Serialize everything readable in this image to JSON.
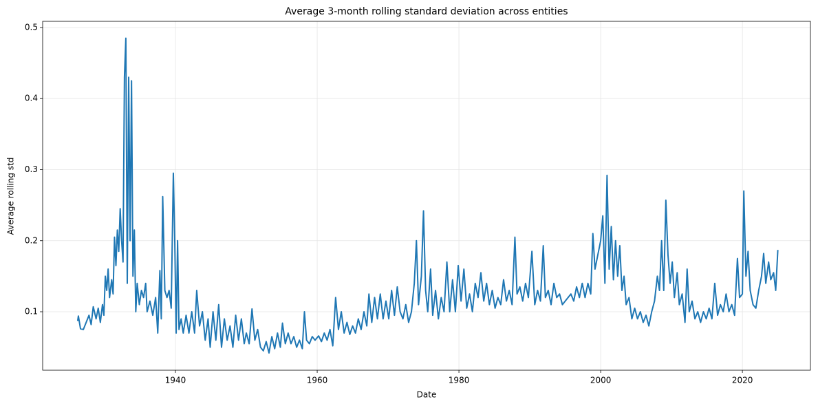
{
  "chart_data": {
    "type": "line",
    "title": "Average 3-month rolling standard deviation across entities",
    "xlabel": "Date",
    "ylabel": "Average rolling std",
    "color": "#1f77b4",
    "grid": true,
    "xlim": [
      1921.26,
      2029.6
    ],
    "ylim": [
      0.0177,
      0.5087
    ],
    "xticks": [
      1940,
      1960,
      1980,
      2000,
      2020
    ],
    "yticks": [
      0.1,
      0.2,
      0.3,
      0.4,
      0.5
    ],
    "x": [
      1926.2,
      1926.3,
      1926.6,
      1927,
      1927.4,
      1927.8,
      1928.1,
      1928.4,
      1928.8,
      1929.1,
      1929.4,
      1929.7,
      1929.9,
      1930.1,
      1930.3,
      1930.5,
      1930.7,
      1931,
      1931.2,
      1931.4,
      1931.6,
      1931.8,
      1932,
      1932.2,
      1932.4,
      1932.6,
      1932.8,
      1933,
      1933.2,
      1933.4,
      1933.6,
      1933.8,
      1934,
      1934.2,
      1934.4,
      1934.6,
      1934.9,
      1935.2,
      1935.5,
      1935.8,
      1936,
      1936.4,
      1936.8,
      1937.2,
      1937.5,
      1937.8,
      1938,
      1938.2,
      1938.5,
      1938.8,
      1939.1,
      1939.4,
      1939.7,
      1939.9,
      1940.1,
      1940.3,
      1940.5,
      1940.8,
      1941.1,
      1941.5,
      1941.9,
      1942.3,
      1942.7,
      1943,
      1943.4,
      1943.8,
      1944.2,
      1944.6,
      1944.9,
      1945.3,
      1945.7,
      1946.1,
      1946.5,
      1946.9,
      1947.3,
      1947.7,
      1948.1,
      1948.5,
      1948.9,
      1949.3,
      1949.7,
      1950,
      1950.4,
      1950.8,
      1951.2,
      1951.6,
      1952,
      1952.4,
      1952.8,
      1953.2,
      1953.6,
      1954,
      1954.4,
      1954.8,
      1955.1,
      1955.5,
      1955.9,
      1956.3,
      1956.7,
      1957.1,
      1957.5,
      1957.9,
      1958.2,
      1958.5,
      1958.9,
      1959.3,
      1959.7,
      1960.2,
      1960.6,
      1961,
      1961.4,
      1961.8,
      1962.2,
      1962.6,
      1963,
      1963.4,
      1963.8,
      1964.2,
      1964.6,
      1965,
      1965.4,
      1965.8,
      1966.2,
      1966.6,
      1967,
      1967.3,
      1967.7,
      1968.1,
      1968.5,
      1968.9,
      1969.3,
      1969.7,
      1970.1,
      1970.5,
      1970.9,
      1971.3,
      1971.7,
      1972.1,
      1972.5,
      1972.9,
      1973.3,
      1973.7,
      1974,
      1974.3,
      1974.7,
      1975,
      1975.3,
      1975.6,
      1976,
      1976.3,
      1976.7,
      1977.1,
      1977.5,
      1977.9,
      1978.3,
      1978.7,
      1979.1,
      1979.5,
      1979.9,
      1980.3,
      1980.7,
      1981.1,
      1981.5,
      1981.9,
      1982.3,
      1982.7,
      1983.1,
      1983.5,
      1983.9,
      1984.3,
      1984.7,
      1985.1,
      1985.5,
      1985.9,
      1986.3,
      1986.7,
      1987.1,
      1987.5,
      1987.9,
      1988.2,
      1988.6,
      1989,
      1989.4,
      1989.8,
      1990.3,
      1990.7,
      1991.1,
      1991.5,
      1991.9,
      1992.2,
      1992.6,
      1993,
      1993.4,
      1993.8,
      1994.2,
      1994.6,
      1995,
      1995.4,
      1995.8,
      1996.2,
      1996.6,
      1997,
      1997.4,
      1997.8,
      1998.2,
      1998.6,
      1998.9,
      1999.2,
      1999.6,
      2000,
      2000.3,
      2000.6,
      2000.9,
      2001.2,
      2001.5,
      2001.8,
      2002.1,
      2002.4,
      2002.7,
      2003,
      2003.3,
      2003.6,
      2004,
      2004.4,
      2004.8,
      2005.2,
      2005.6,
      2006,
      2006.4,
      2006.8,
      2007.2,
      2007.6,
      2008,
      2008.3,
      2008.6,
      2008.9,
      2009.2,
      2009.5,
      2009.8,
      2010.1,
      2010.4,
      2010.8,
      2011.1,
      2011.5,
      2011.9,
      2012.2,
      2012.5,
      2012.9,
      2013.3,
      2013.7,
      2014.1,
      2014.5,
      2014.9,
      2015.3,
      2015.7,
      2016.1,
      2016.5,
      2016.9,
      2017.3,
      2017.7,
      2018.1,
      2018.5,
      2018.9,
      2019.3,
      2019.6,
      2020,
      2020.2,
      2020.5,
      2020.8,
      2021.1,
      2021.5,
      2021.9,
      2022.3,
      2022.7,
      2023,
      2023.3,
      2023.7,
      2024,
      2024.4,
      2024.7,
      2025
    ],
    "values": [
      0.087,
      0.094,
      0.076,
      0.075,
      0.085,
      0.095,
      0.082,
      0.107,
      0.09,
      0.105,
      0.085,
      0.11,
      0.095,
      0.15,
      0.13,
      0.16,
      0.12,
      0.145,
      0.125,
      0.205,
      0.165,
      0.215,
      0.185,
      0.245,
      0.2,
      0.17,
      0.43,
      0.485,
      0.14,
      0.43,
      0.2,
      0.425,
      0.15,
      0.215,
      0.1,
      0.14,
      0.11,
      0.13,
      0.12,
      0.14,
      0.1,
      0.115,
      0.095,
      0.12,
      0.07,
      0.158,
      0.09,
      0.262,
      0.13,
      0.12,
      0.13,
      0.105,
      0.295,
      0.2,
      0.07,
      0.2,
      0.075,
      0.09,
      0.07,
      0.095,
      0.07,
      0.1,
      0.07,
      0.13,
      0.08,
      0.1,
      0.06,
      0.09,
      0.05,
      0.1,
      0.06,
      0.11,
      0.05,
      0.09,
      0.06,
      0.08,
      0.05,
      0.095,
      0.06,
      0.09,
      0.055,
      0.07,
      0.055,
      0.104,
      0.06,
      0.075,
      0.05,
      0.045,
      0.058,
      0.042,
      0.065,
      0.048,
      0.07,
      0.05,
      0.084,
      0.055,
      0.07,
      0.055,
      0.065,
      0.05,
      0.06,
      0.048,
      0.1,
      0.06,
      0.055,
      0.065,
      0.06,
      0.066,
      0.058,
      0.07,
      0.06,
      0.075,
      0.052,
      0.12,
      0.075,
      0.1,
      0.07,
      0.085,
      0.068,
      0.08,
      0.07,
      0.09,
      0.075,
      0.1,
      0.08,
      0.125,
      0.085,
      0.12,
      0.09,
      0.125,
      0.09,
      0.115,
      0.09,
      0.13,
      0.095,
      0.135,
      0.1,
      0.09,
      0.11,
      0.085,
      0.1,
      0.14,
      0.2,
      0.11,
      0.15,
      0.242,
      0.13,
      0.1,
      0.16,
      0.095,
      0.13,
      0.09,
      0.12,
      0.1,
      0.17,
      0.1,
      0.145,
      0.1,
      0.165,
      0.115,
      0.16,
      0.105,
      0.125,
      0.1,
      0.14,
      0.12,
      0.155,
      0.115,
      0.14,
      0.11,
      0.13,
      0.105,
      0.12,
      0.11,
      0.145,
      0.115,
      0.13,
      0.11,
      0.205,
      0.125,
      0.135,
      0.115,
      0.14,
      0.12,
      0.185,
      0.11,
      0.13,
      0.115,
      0.193,
      0.12,
      0.13,
      0.11,
      0.14,
      0.12,
      0.125,
      0.11,
      0.115,
      0.12,
      0.125,
      0.115,
      0.135,
      0.12,
      0.14,
      0.12,
      0.14,
      0.125,
      0.21,
      0.16,
      0.18,
      0.2,
      0.235,
      0.14,
      0.292,
      0.16,
      0.22,
      0.145,
      0.2,
      0.15,
      0.193,
      0.13,
      0.15,
      0.11,
      0.12,
      0.09,
      0.105,
      0.09,
      0.1,
      0.085,
      0.095,
      0.08,
      0.1,
      0.115,
      0.15,
      0.13,
      0.2,
      0.13,
      0.257,
      0.18,
      0.14,
      0.17,
      0.12,
      0.155,
      0.11,
      0.125,
      0.085,
      0.16,
      0.1,
      0.115,
      0.09,
      0.1,
      0.085,
      0.1,
      0.09,
      0.105,
      0.09,
      0.14,
      0.095,
      0.11,
      0.1,
      0.125,
      0.1,
      0.11,
      0.095,
      0.175,
      0.12,
      0.125,
      0.27,
      0.15,
      0.185,
      0.13,
      0.11,
      0.105,
      0.13,
      0.15,
      0.182,
      0.14,
      0.17,
      0.145,
      0.155,
      0.13,
      0.187
    ]
  }
}
